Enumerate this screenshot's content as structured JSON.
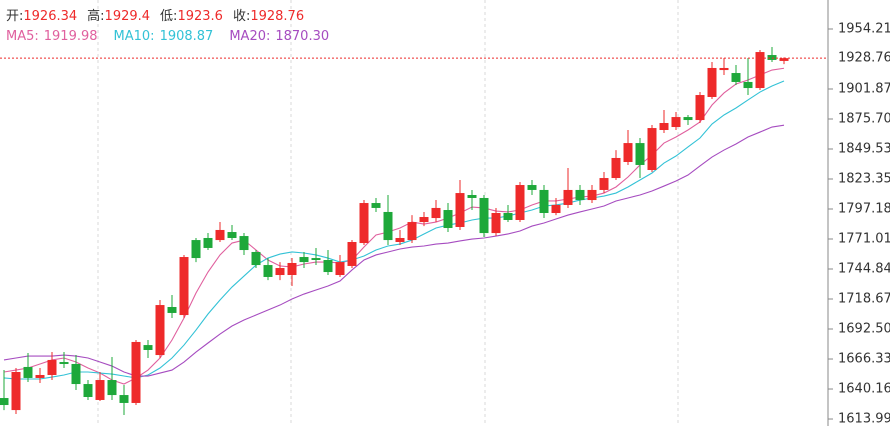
{
  "chart_data": {
    "type": "candlestick",
    "ohlc_labels": [
      "开:",
      "高:",
      "低:",
      "收:"
    ],
    "up_color": "#ee2a2a",
    "down_color": "#1ea83a",
    "candles": {
      "open": [
        1632.3,
        1621.8,
        1659.4,
        1649.8,
        1652.4,
        1663.7,
        1662.0,
        1644.5,
        1630.6,
        1648.0,
        1634.9,
        1628.0,
        1678.5,
        1669.8,
        1711.7,
        1704.7,
        1770.1,
        1771.9,
        1770.1,
        1777.1,
        1773.6,
        1759.7,
        1748.3,
        1739.6,
        1739.6,
        1755.3,
        1754.4,
        1752.7,
        1739.6,
        1747.5,
        1767.5,
        1802.4,
        1794.6,
        1768.4,
        1770.1,
        1785.8,
        1789.3,
        1796.3,
        1781.5,
        1809.4,
        1806.8,
        1776.2,
        1793.7,
        1787.6,
        1818.1,
        1813.8,
        1793.7,
        1800.7,
        1813.8,
        1805.0,
        1813.8,
        1824.2,
        1838.2,
        1854.7,
        1831.2,
        1866.1,
        1868.7,
        1877.4,
        1874.8,
        1894.9,
        1918.4,
        1915.8,
        1908.0,
        1902.7,
        1931.5,
        1926.34
      ],
      "high": [
        1656.7,
        1658.5,
        1671.6,
        1658.5,
        1672.4,
        1672.4,
        1669.8,
        1648.0,
        1655.0,
        1668.1,
        1643.7,
        1682.9,
        1682.9,
        1717.8,
        1722.2,
        1757.1,
        1771.9,
        1776.2,
        1785.8,
        1783.2,
        1776.2,
        1761.4,
        1754.4,
        1750.9,
        1754.4,
        1759.7,
        1763.2,
        1761.4,
        1757.1,
        1770.1,
        1805.0,
        1806.8,
        1809.4,
        1778.9,
        1791.9,
        1794.6,
        1805.0,
        1802.4,
        1822.5,
        1813.8,
        1809.4,
        1798.1,
        1800.7,
        1820.7,
        1822.5,
        1818.1,
        1806.8,
        1832.9,
        1818.1,
        1818.1,
        1829.5,
        1848.6,
        1866.1,
        1859.1,
        1870.5,
        1883.5,
        1881.8,
        1879.2,
        1899.2,
        1925.4,
        1928.9,
        1922.8,
        1928.9,
        1935.9,
        1938.5,
        1929.4
      ],
      "low": [
        1621.8,
        1618.4,
        1646.3,
        1645.4,
        1648.0,
        1658.5,
        1639.3,
        1630.6,
        1629.7,
        1630.6,
        1617.5,
        1626.2,
        1667.2,
        1667.2,
        1702.1,
        1702.1,
        1750.9,
        1761.4,
        1768.4,
        1770.1,
        1757.1,
        1745.7,
        1735.2,
        1735.2,
        1730.0,
        1745.7,
        1748.3,
        1739.6,
        1737.9,
        1745.7,
        1765.8,
        1794.6,
        1765.8,
        1765.8,
        1767.5,
        1782.3,
        1785.8,
        1777.1,
        1778.9,
        1796.3,
        1772.8,
        1773.6,
        1785.8,
        1785.8,
        1809.4,
        1789.3,
        1791.9,
        1798.1,
        1800.7,
        1802.4,
        1811.1,
        1822.5,
        1835.6,
        1824.2,
        1829.5,
        1863.5,
        1866.1,
        1870.5,
        1872.2,
        1893.1,
        1914.1,
        1905.3,
        1896.6,
        1901.0,
        1925.4,
        1923.6
      ],
      "close": [
        1626.2,
        1655.0,
        1649.8,
        1652.4,
        1665.5,
        1662.0,
        1644.5,
        1633.2,
        1648.0,
        1634.9,
        1628.0,
        1681.2,
        1674.2,
        1713.4,
        1706.5,
        1755.3,
        1754.4,
        1763.2,
        1778.9,
        1771.9,
        1761.4,
        1748.3,
        1737.9,
        1745.7,
        1750.1,
        1750.9,
        1752.7,
        1742.2,
        1750.9,
        1768.4,
        1802.4,
        1798.1,
        1770.1,
        1771.9,
        1785.8,
        1790.2,
        1798.1,
        1780.6,
        1811.1,
        1806.8,
        1776.2,
        1793.7,
        1787.6,
        1818.1,
        1813.8,
        1793.7,
        1800.7,
        1813.8,
        1805.0,
        1813.8,
        1824.2,
        1841.7,
        1854.7,
        1835.6,
        1867.8,
        1872.2,
        1877.4,
        1874.8,
        1896.6,
        1920.2,
        1920.2,
        1908.0,
        1902.7,
        1934.1,
        1927.2,
        1928.76
      ]
    },
    "series": [
      {
        "name": "MA5:",
        "color": "#e0609e",
        "values": [
          1655.0,
          1656.7,
          1658.5,
          1662.0,
          1665.5,
          1667.2,
          1663.7,
          1658.5,
          1654.1,
          1648.0,
          1644.5,
          1649.8,
          1656.7,
          1667.2,
          1682.9,
          1702.1,
          1723.9,
          1742.2,
          1757.1,
          1767.5,
          1770.1,
          1761.4,
          1752.7,
          1747.5,
          1746.6,
          1749.2,
          1750.9,
          1750.9,
          1750.1,
          1752.7,
          1764.0,
          1774.5,
          1777.1,
          1780.6,
          1785.8,
          1784.1,
          1785.8,
          1789.3,
          1793.7,
          1798.9,
          1798.1,
          1795.4,
          1794.6,
          1796.3,
          1800.7,
          1804.2,
          1804.2,
          1805.9,
          1807.6,
          1808.5,
          1811.1,
          1816.4,
          1825.1,
          1835.6,
          1844.3,
          1854.7,
          1860.0,
          1866.1,
          1873.1,
          1887.9,
          1898.4,
          1906.2,
          1909.7,
          1914.1,
          1918.4,
          1919.98
        ]
      },
      {
        "name": "MA10:",
        "color": "#33c2d6",
        "values": [
          1649.8,
          1648.9,
          1648.9,
          1648.9,
          1650.6,
          1652.4,
          1655.0,
          1655.0,
          1654.1,
          1653.2,
          1651.5,
          1649.8,
          1652.4,
          1658.5,
          1667.2,
          1678.5,
          1691.6,
          1705.6,
          1717.8,
          1729.1,
          1738.7,
          1748.3,
          1754.4,
          1757.9,
          1759.7,
          1758.8,
          1757.1,
          1754.4,
          1750.9,
          1752.7,
          1756.2,
          1761.4,
          1764.9,
          1766.6,
          1770.1,
          1775.4,
          1780.6,
          1783.2,
          1785.0,
          1787.6,
          1789.3,
          1789.3,
          1791.1,
          1793.7,
          1796.3,
          1799.8,
          1800.7,
          1802.4,
          1805.0,
          1806.8,
          1808.5,
          1811.1,
          1816.4,
          1822.5,
          1828.6,
          1837.3,
          1843.4,
          1851.3,
          1859.1,
          1871.3,
          1879.2,
          1885.3,
          1892.3,
          1899.2,
          1904.5,
          1908.87
        ]
      },
      {
        "name": "MA20:",
        "color": "#a64cc0",
        "values": [
          1665.5,
          1667.2,
          1668.9,
          1668.9,
          1668.9,
          1669.8,
          1668.9,
          1667.2,
          1663.7,
          1660.2,
          1655.0,
          1651.5,
          1651.5,
          1654.1,
          1656.7,
          1663.7,
          1672.4,
          1680.3,
          1688.1,
          1695.1,
          1700.4,
          1704.7,
          1709.1,
          1713.4,
          1718.7,
          1723.0,
          1726.5,
          1730.0,
          1734.4,
          1744.0,
          1752.7,
          1757.1,
          1759.7,
          1762.3,
          1764.0,
          1764.9,
          1766.6,
          1767.5,
          1769.3,
          1771.0,
          1771.9,
          1773.6,
          1775.4,
          1778.0,
          1782.3,
          1785.0,
          1788.5,
          1791.9,
          1794.6,
          1797.2,
          1799.8,
          1804.2,
          1806.8,
          1809.4,
          1812.9,
          1817.2,
          1821.6,
          1826.8,
          1834.7,
          1842.5,
          1848.6,
          1853.9,
          1860.0,
          1864.3,
          1868.7,
          1870.3
        ]
      }
    ],
    "legend_values": [
      1919.98,
      1908.87,
      {
        "value": 1870.3,
        "label": "1870.30"
      }
    ],
    "ylim": [
      1607.9,
      1979.5
    ],
    "yticks": [
      1954.21,
      1901.87,
      {
        "value": 1875.7,
        "label": "1875.70"
      },
      1849.53,
      1823.35,
      1797.18,
      1771.01,
      1744.84,
      1718.67,
      {
        "value": 1692.5,
        "label": "1692.50"
      },
      1666.33,
      1640.16,
      1613.99
    ]
  }
}
